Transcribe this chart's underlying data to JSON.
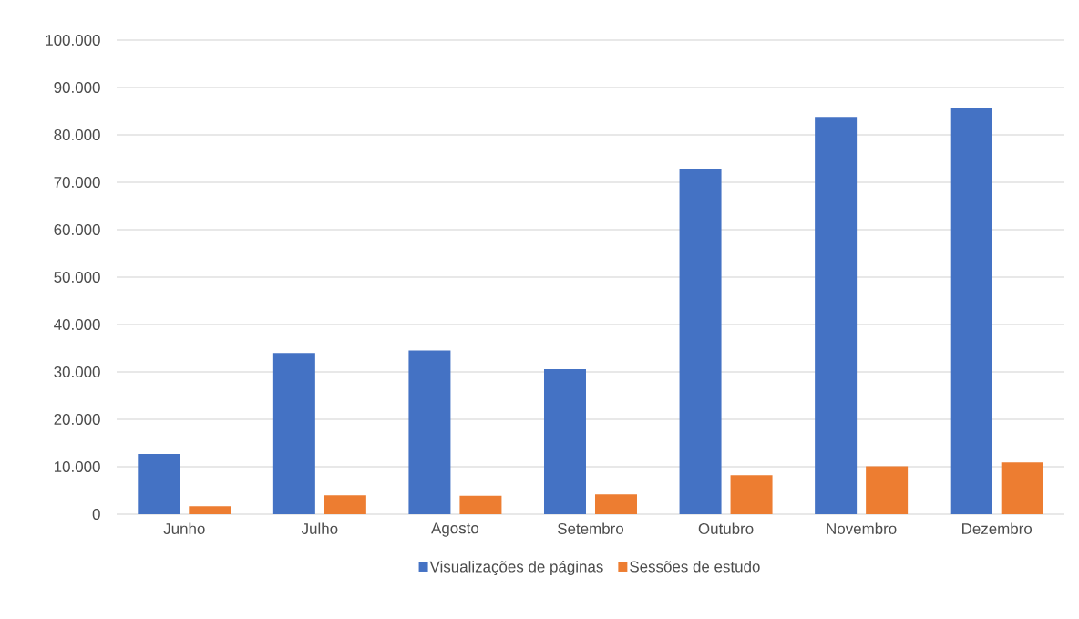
{
  "chart_data": {
    "type": "bar",
    "categories": [
      "Junho",
      "Julho",
      "Agosto",
      "Setembro",
      "Outubro",
      "Novembro",
      "Dezembro"
    ],
    "series": [
      {
        "name": "Visualizações de páginas",
        "color": "#4472c4",
        "values": [
          12700,
          34000,
          34500,
          30600,
          72900,
          83800,
          85700
        ]
      },
      {
        "name": "Sessões de estudo",
        "color": "#ed7d31",
        "values": [
          1700,
          4000,
          3900,
          4200,
          8200,
          10100,
          10900
        ]
      }
    ],
    "ylim": [
      0,
      100000
    ],
    "yticks": [
      0,
      {
        "value": 10000,
        "label": "10.000"
      },
      {
        "value": 20000,
        "label": "20.000"
      },
      {
        "value": 30000,
        "label": "30.000"
      },
      {
        "value": 40000,
        "label": "40.000"
      },
      {
        "value": 50000,
        "label": "50.000"
      },
      {
        "value": 60000,
        "label": "60.000"
      },
      {
        "value": 70000,
        "label": "70.000"
      },
      {
        "value": 80000,
        "label": "80.000"
      },
      {
        "value": 90000,
        "label": "90.000"
      },
      {
        "value": 100000,
        "label": "100.000"
      }
    ],
    "grid": "y",
    "legend": "bottom"
  }
}
